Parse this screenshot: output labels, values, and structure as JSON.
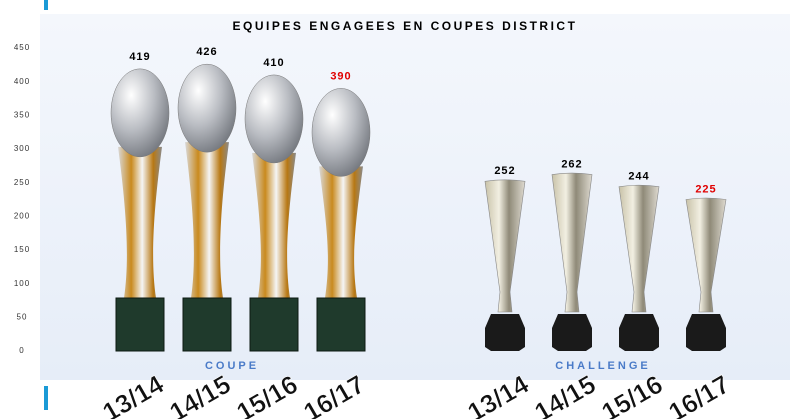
{
  "chart_data": {
    "type": "trophy-bar",
    "title": "EQUIPES ENGAGEES EN COUPES DISTRICT",
    "ylim": [
      0,
      450
    ],
    "yticks": [
      0,
      50,
      100,
      150,
      200,
      250,
      300,
      350,
      400,
      450
    ],
    "group_label_color": "#4a7bc8",
    "groups": [
      {
        "name": "COUPE",
        "categories": [
          "13/14",
          "14/15",
          "15/16",
          "16/17"
        ],
        "values": [
          419,
          426,
          410,
          390
        ],
        "value_label_colors": [
          "#000000",
          "#000000",
          "#000000",
          "#e00000"
        ]
      },
      {
        "name": "CHALLENGE",
        "categories": [
          "13/14",
          "14/15",
          "15/16",
          "16/17"
        ],
        "values": [
          252,
          262,
          244,
          225
        ],
        "value_label_colors": [
          "#000000",
          "#000000",
          "#000000",
          "#e00000"
        ]
      }
    ]
  }
}
